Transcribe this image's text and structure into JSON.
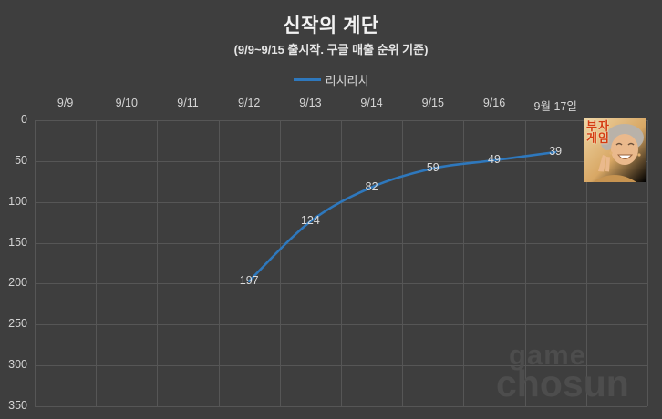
{
  "title": "신작의 계단",
  "subtitle": "(9/9~9/15 출시작. 구글 매출 순위 기준)",
  "legend": {
    "label": "리치리치",
    "color": "#2e78bd"
  },
  "colors": {
    "background": "#3e3e3e",
    "gridline": "#565656",
    "series_line": "#2e78bd",
    "axis_text": "#d4d4d4",
    "title_text": "#f2f2f2",
    "watermark_text": "#4d4d4d"
  },
  "chart_data": {
    "type": "line",
    "title": "신작의 계단",
    "subtitle": "(9/9~9/15 출시작. 구글 매출 순위 기준)",
    "categories": [
      "9/9",
      "9/10",
      "9/11",
      "9/12",
      "9/13",
      "9/14",
      "9/15",
      "9/16",
      "9월 17일"
    ],
    "series": [
      {
        "name": "리치리치",
        "color": "#2e78bd",
        "points": [
          [
            "9/12",
            197
          ],
          [
            "9/13",
            124
          ],
          [
            "9/14",
            82
          ],
          [
            "9/15",
            59
          ],
          [
            "9/16",
            49
          ],
          [
            "9월 17일",
            39
          ]
        ]
      }
    ],
    "y_axis": {
      "min": 0,
      "max": 350,
      "ticks": [
        0,
        50,
        100,
        150,
        200,
        250,
        300,
        350
      ],
      "inverted": true
    },
    "x_axis": {
      "position": "top"
    },
    "grid": true,
    "legend_position": "top",
    "data_labels": true
  },
  "thumbnail": {
    "label_line1": "부자",
    "label_line2": "게임"
  },
  "watermark": {
    "line1": "game",
    "line2": "chosun"
  }
}
